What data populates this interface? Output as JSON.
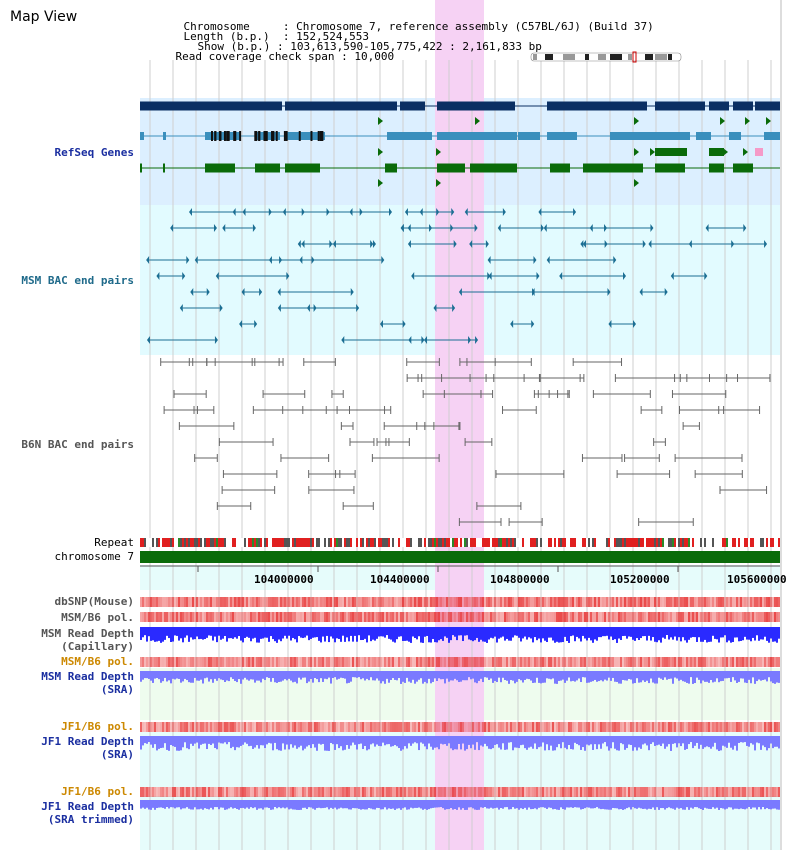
{
  "view_title": "Map View",
  "info": {
    "chromosome_label": "Chromosome",
    "chromosome_value": "Chromosome 7, reference assembly (C57BL/6J) (Build 37)",
    "length_label": "Length (b.p.)",
    "length_value": "152,524,553",
    "show_label": "Show (b.p.)",
    "show_value": "103,613,590-105,775,422 : 2,161,833 bp",
    "read_coverage_label": "Read coverage check span",
    "read_coverage_value": "10,000"
  },
  "tracks": {
    "refseq": "RefSeq Genes",
    "msm_bac": "MSM BAC end pairs",
    "b6n_bac": "B6N BAC end pairs",
    "repeat": "Repeat",
    "chromosome": "chromosome 7",
    "dbsnp": "dbSNP(Mouse)",
    "msm_b6_pol_1": "MSM/B6 pol.",
    "msm_read_depth_cap_1": "MSM Read Depth",
    "msm_read_depth_cap_2": "(Capillary)",
    "msm_b6_pol_2": "MSM/B6 pol.",
    "msm_read_depth_sra_1": "MSM Read Depth",
    "msm_read_depth_sra_2": "(SRA)",
    "jf1_b6_pol_1": "JF1/B6 pol.",
    "jf1_read_depth_sra_1": "JF1 Read Depth",
    "jf1_read_depth_sra_2": "(SRA)",
    "jf1_b6_pol_2": "JF1/B6 pol.",
    "jf1_read_depth_trim_1": "JF1 Read Depth",
    "jf1_read_depth_trim_2": "(SRA trimmed)"
  },
  "axis_ticks": [
    "104000000",
    "104400000",
    "104800000",
    "105200000",
    "105600000"
  ],
  "colors": {
    "highlight": "#f6d2f4",
    "refseq_bg": "#dcefff",
    "msm_bg": "#e2fbff",
    "gene_dark": "#0a2f63",
    "gene_mid": "#3a8fbd",
    "gene_green": "#0a6b0a",
    "bac_blue": "#1b6e93",
    "bac_gray": "#666666",
    "chromosome_green": "#0a6b0a",
    "read_depth_blue": "#2a2aff",
    "read_depth_light": "#7a7aff",
    "pol_red": "#f07070"
  },
  "icons": {
    "ideogram": "chromosome-ideogram-icon"
  }
}
